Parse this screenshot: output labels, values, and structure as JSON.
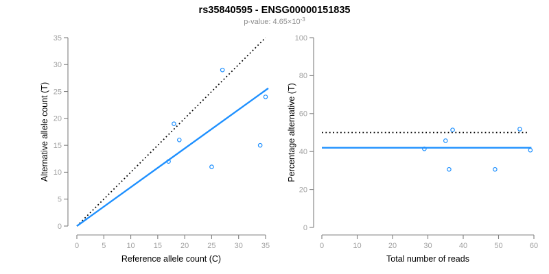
{
  "header": {
    "title": "rs35840595 - ENSG00000151835",
    "subtitle_prefix": "p-value: 4.65×10",
    "subtitle_exponent": "-3"
  },
  "colors": {
    "accent_blue": "#1E90FF",
    "axis_gray": "#7f7f7f",
    "tick_label_gray": "#a0a0a0",
    "line_black": "#000000",
    "axis_title_black": "#000000"
  },
  "chart_data": [
    {
      "name": "allele-count-scatter",
      "type": "scatter",
      "xlabel": "Reference allele count (C)",
      "ylabel": "Alternative allele count (T)",
      "xlim": [
        0,
        35
      ],
      "ylim": [
        0,
        35
      ],
      "xticks": [
        0,
        5,
        10,
        15,
        20,
        25,
        30,
        35
      ],
      "yticks": [
        0,
        5,
        10,
        15,
        20,
        25,
        30,
        35
      ],
      "grid": false,
      "legend": false,
      "point_style": "open-circle",
      "point_color": "#1E90FF",
      "points": [
        [
          17,
          12
        ],
        [
          18,
          19
        ],
        [
          19,
          16
        ],
        [
          25,
          11
        ],
        [
          27,
          29
        ],
        [
          34,
          15
        ],
        [
          35,
          24
        ]
      ],
      "lines": [
        {
          "name": "identity-line",
          "x": [
            0,
            35
          ],
          "y": [
            0,
            35
          ],
          "style": "dotted",
          "color": "#000000",
          "width": 1.8
        },
        {
          "name": "regression-line",
          "x": [
            0,
            35.5
          ],
          "y": [
            0,
            25.6
          ],
          "style": "solid",
          "color": "#1E90FF",
          "width": 2.4
        }
      ]
    },
    {
      "name": "percentage-alternative-scatter",
      "type": "scatter",
      "xlabel": "Total number of reads",
      "ylabel": "Percentage alternative (T)",
      "xlim": [
        0,
        60
      ],
      "ylim": [
        0,
        100
      ],
      "xticks": [
        0,
        10,
        20,
        30,
        40,
        50,
        60
      ],
      "yticks": [
        0,
        20,
        40,
        60,
        80,
        100
      ],
      "grid": false,
      "legend": false,
      "point_style": "open-circle",
      "point_color": "#1E90FF",
      "points": [
        [
          29,
          41.4
        ],
        [
          35,
          45.7
        ],
        [
          36,
          30.6
        ],
        [
          37,
          51.4
        ],
        [
          49,
          30.6
        ],
        [
          56,
          51.8
        ],
        [
          59,
          40.7
        ]
      ],
      "lines": [
        {
          "name": "expected-50pct-line",
          "x": [
            0,
            58.5
          ],
          "y": [
            50,
            50
          ],
          "style": "dotted",
          "color": "#000000",
          "width": 1.8
        },
        {
          "name": "mean-percentage-line",
          "x": [
            0,
            59.3
          ],
          "y": [
            42,
            42
          ],
          "style": "solid",
          "color": "#1E90FF",
          "width": 2.4
        }
      ]
    }
  ]
}
